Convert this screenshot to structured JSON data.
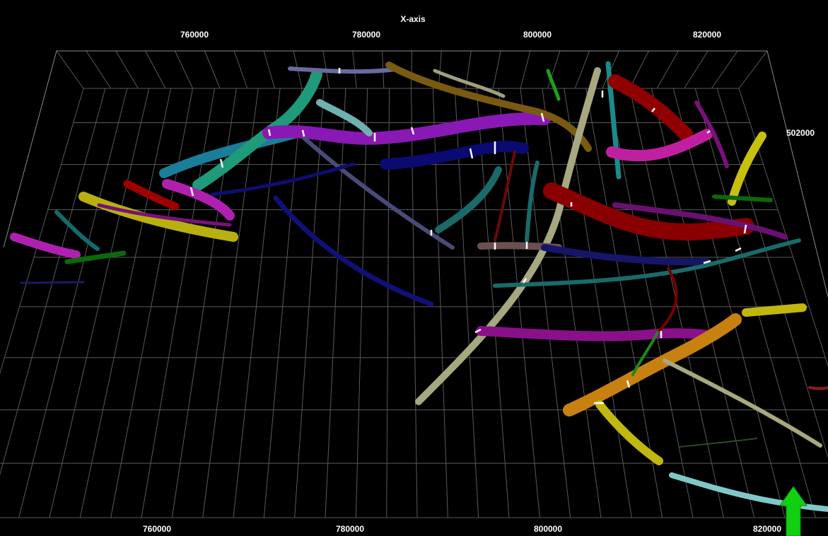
{
  "viewer": {
    "axis_title": "X-axis",
    "top_ticks": [
      "760000",
      "780000",
      "800000",
      "820000"
    ],
    "bottom_ticks": [
      "760000",
      "780000",
      "800000",
      "820000"
    ],
    "right_ticks": [
      "502000"
    ]
  }
}
